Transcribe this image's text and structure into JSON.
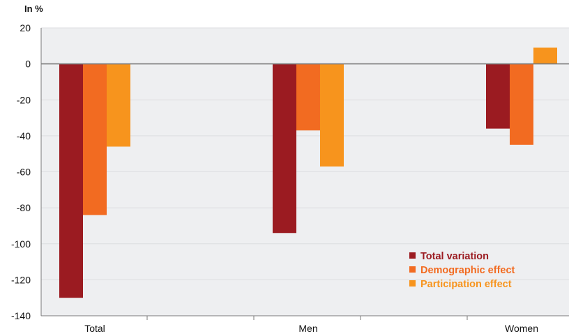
{
  "chart_data": {
    "type": "bar",
    "unit_label": "In %",
    "title": "",
    "xlabel": "",
    "ylabel": "",
    "categories": [
      "Total",
      "Men",
      "Women"
    ],
    "series": [
      {
        "name": "Total variation",
        "color": "#9b1b21",
        "values": [
          -130,
          -94,
          -36
        ]
      },
      {
        "name": "Demographic effect",
        "color": "#f26b21",
        "values": [
          -84,
          -37,
          -45
        ]
      },
      {
        "name": "Participation effect",
        "color": "#f7941d",
        "values": [
          -46,
          -57,
          9
        ]
      }
    ],
    "ylim": [
      -140,
      20
    ],
    "yticks": [
      20,
      0,
      -20,
      -40,
      -60,
      -80,
      -100,
      -120,
      -140
    ],
    "grid": true,
    "legend_position": "bottom-right",
    "plot_background": "#eeeff1",
    "zero_line_color": "#7a7a7a"
  }
}
